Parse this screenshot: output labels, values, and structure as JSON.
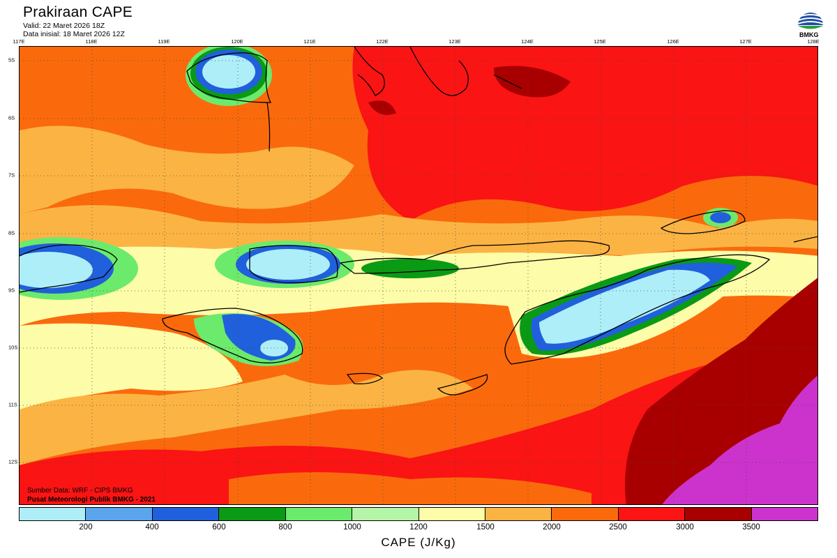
{
  "header": {
    "title": "Prakiraan CAPE",
    "valid": "Valid: 22 Maret 2026 18Z",
    "initial": "Data inisial: 18 Maret 2026 12Z"
  },
  "logo": {
    "text": "BMKG"
  },
  "axes": {
    "lon_labels": [
      "117E",
      "118E",
      "119E",
      "120E",
      "121E",
      "122E",
      "123E",
      "124E",
      "125E",
      "126E",
      "127E",
      "128E"
    ],
    "lat_labels": [
      "5S",
      "6S",
      "7S",
      "8S",
      "9S",
      "10S",
      "11S",
      "12S"
    ]
  },
  "credits": {
    "source": "Sumber Data: WRF - CIPS BMKG",
    "org": "Pusat Meteorologi Publik BMKG - 2021"
  },
  "colorbar": {
    "title": "CAPE (J/Kg)",
    "ticks": [
      "200",
      "400",
      "600",
      "800",
      "1000",
      "1200",
      "1500",
      "2000",
      "2500",
      "3000",
      "3500"
    ],
    "colors": [
      "#aeeef8",
      "#5aa5ec",
      "#2060dc",
      "#0a9a14",
      "#6cea6c",
      "#b4f5a8",
      "#fdfca8",
      "#fbb444",
      "#fa6a0c",
      "#fa1414",
      "#a80000",
      "#cc33cc"
    ]
  }
}
